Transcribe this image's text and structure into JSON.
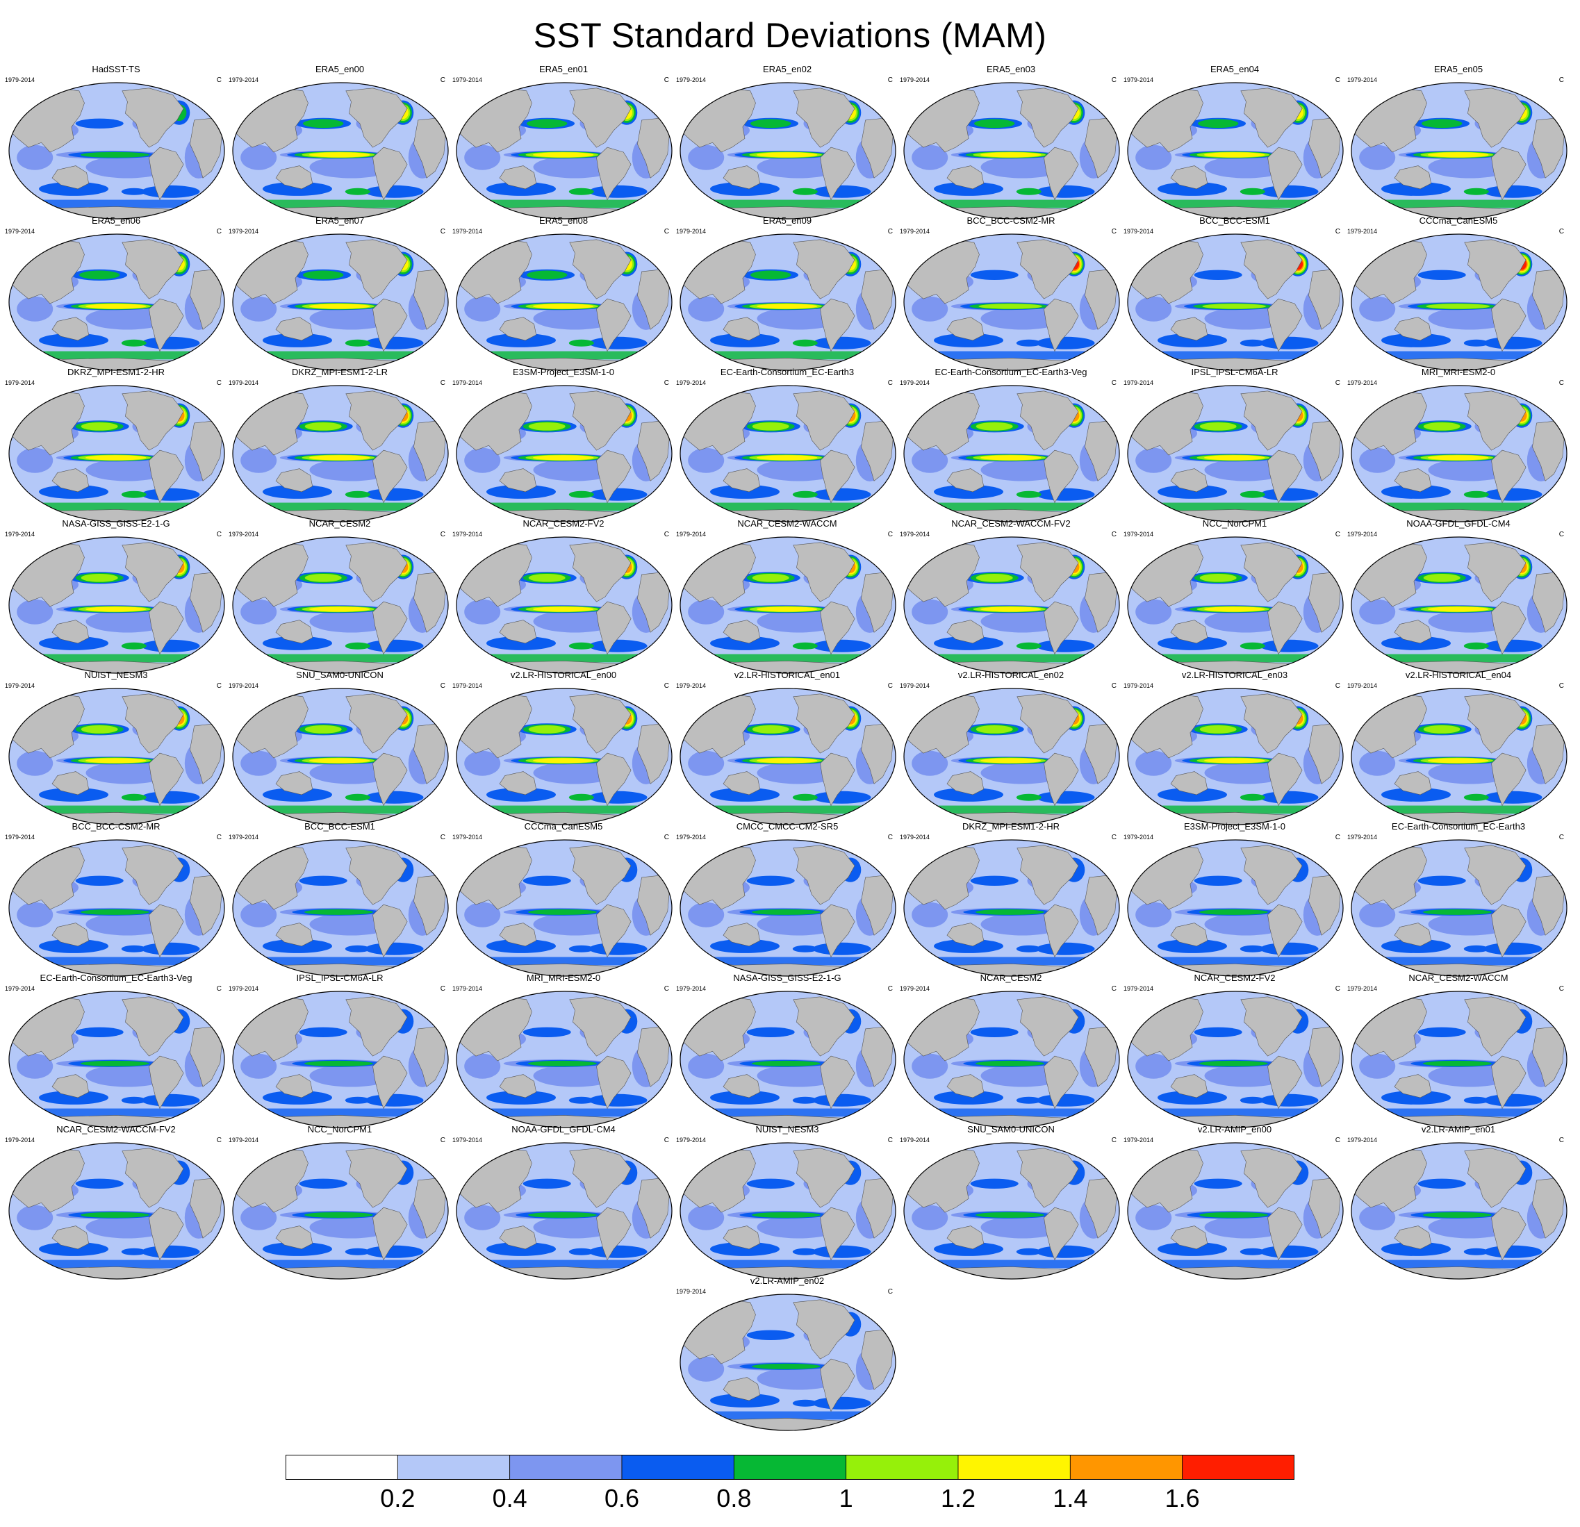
{
  "title": "SST Standard Deviations (MAM)",
  "panel_common": {
    "left_label": "1979-2014",
    "right_label": "C"
  },
  "chart_data": {
    "type": "heatmap",
    "title": "SST Standard Deviations (MAM)",
    "units": "C",
    "period": "1979-2014",
    "panels": [
      "HadSST-TS",
      "ERA5_en00",
      "ERA5_en01",
      "ERA5_en02",
      "ERA5_en03",
      "ERA5_en04",
      "ERA5_en05",
      "ERA5_en06",
      "ERA5_en07",
      "ERA5_en08",
      "ERA5_en09",
      "BCC_BCC-CSM2-MR",
      "BCC_BCC-ESM1",
      "CCCma_CanESM5",
      "DKRZ_MPI-ESM1-2-HR",
      "DKRZ_MPI-ESM1-2-LR",
      "E3SM-Project_E3SM-1-0",
      "EC-Earth-Consortium_EC-Earth3",
      "EC-Earth-Consortium_EC-Earth3-Veg",
      "IPSL_IPSL-CM6A-LR",
      "MRI_MRI-ESM2-0",
      "NASA-GISS_GISS-E2-1-G",
      "NCAR_CESM2",
      "NCAR_CESM2-FV2",
      "NCAR_CESM2-WACCM",
      "NCAR_CESM2-WACCM-FV2",
      "NCC_NorCPM1",
      "NOAA-GFDL_GFDL-CM4",
      "NUIST_NESM3",
      "SNU_SAM0-UNICON",
      "v2.LR-HISTORICAL_en00",
      "v2.LR-HISTORICAL_en01",
      "v2.LR-HISTORICAL_en02",
      "v2.LR-HISTORICAL_en03",
      "v2.LR-HISTORICAL_en04",
      "BCC_BCC-CSM2-MR",
      "BCC_BCC-ESM1",
      "CCCma_CanESM5",
      "CMCC_CMCC-CM2-SR5",
      "DKRZ_MPI-ESM1-2-HR",
      "E3SM-Project_E3SM-1-0",
      "EC-Earth-Consortium_EC-Earth3",
      "EC-Earth-Consortium_EC-Earth3-Veg",
      "IPSL_IPSL-CM6A-LR",
      "MRI_MRI-ESM2-0",
      "NASA-GISS_GISS-E2-1-G",
      "NCAR_CESM2",
      "NCAR_CESM2-FV2",
      "NCAR_CESM2-WACCM",
      "NCAR_CESM2-WACCM-FV2",
      "NCC_NorCPM1",
      "NOAA-GFDL_GFDL-CM4",
      "NUIST_NESM3",
      "SNU_SAM0-UNICON",
      "v2.LR-AMIP_en00",
      "v2.LR-AMIP_en01",
      "v2.LR-AMIP_en02"
    ],
    "colorbar": {
      "levels": [
        0.2,
        0.4,
        0.6,
        0.8,
        1,
        1.2,
        1.4,
        1.6
      ],
      "tick_labels": [
        "0.2",
        "0.4",
        "0.6",
        "0.8",
        "1",
        "1.2",
        "1.4",
        "1.6"
      ],
      "colors": [
        "#ffffff",
        "#b4c8f8",
        "#7d96f0",
        "#0a5cf0",
        "#06b834",
        "#96f00a",
        "#fff500",
        "#ff9600",
        "#ff1e00"
      ]
    },
    "land_color": "#bebebe",
    "legend_placement": "bottom"
  }
}
